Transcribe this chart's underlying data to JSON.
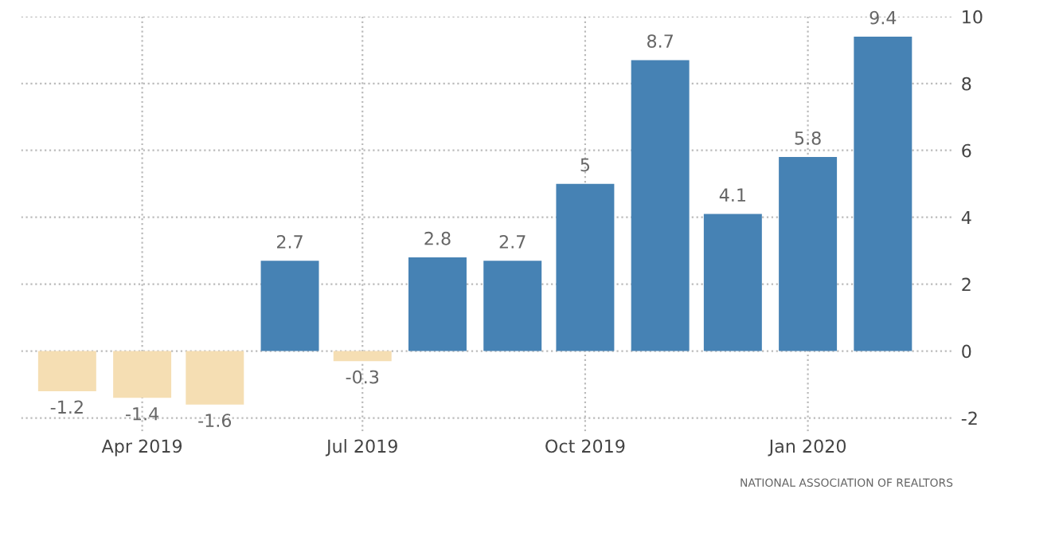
{
  "chart_data": {
    "type": "bar",
    "x": [
      "2019-03",
      "2019-04",
      "2019-05",
      "2019-06",
      "2019-07",
      "2019-08",
      "2019-09",
      "2019-10",
      "2019-11",
      "2019-12",
      "2020-01",
      "2020-02"
    ],
    "values": [
      -1.2,
      -1.4,
      -1.6,
      2.7,
      -0.3,
      2.8,
      2.7,
      5,
      8.7,
      4.1,
      5.8,
      9.4
    ],
    "colors": [
      "#f5deb3",
      "#f5deb3",
      "#f5deb3",
      "#4682b4",
      "#f5deb3",
      "#4682b4",
      "#4682b4",
      "#4682b4",
      "#4682b4",
      "#4682b4",
      "#4682b4",
      "#4682b4"
    ],
    "data_labels": true,
    "xlim": [
      "2019-02-10",
      "2020-03-01"
    ],
    "xticks": [
      {
        "value": "2019-04",
        "label": "Apr 2019"
      },
      {
        "value": "2019-07",
        "label": "Jul 2019"
      },
      {
        "value": "2019-10",
        "label": "Oct 2019"
      },
      {
        "value": "2020-01",
        "label": "Jan 2020"
      }
    ],
    "ylim": [
      -2.4,
      10
    ],
    "yticks": [
      -2,
      0,
      2,
      4,
      6,
      8,
      10
    ],
    "grid": true,
    "annotations": [
      "NATIONAL ASSOCIATION OF REALTORS"
    ]
  }
}
